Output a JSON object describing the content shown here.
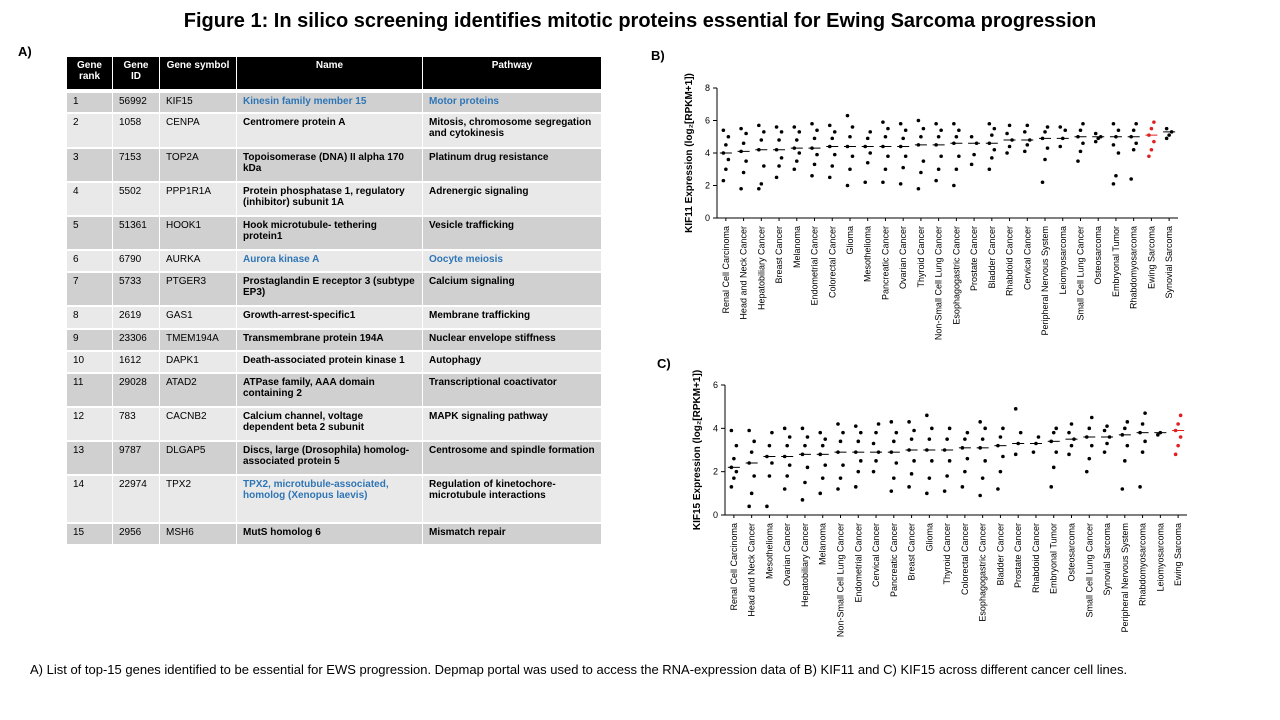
{
  "title": "Figure 1: In silico screening identifies mitotic proteins essential for Ewing Sarcoma progression",
  "panel_labels": [
    "A)",
    "B)",
    "C)"
  ],
  "caption": "A) List of top-15 genes identified to be essential for EWS progression. Depmap portal was used to access the RNA-expression data of B) KIF11 and C) KIF15 across different cancer cell lines.",
  "table": {
    "header": [
      "Gene rank",
      "Gene ID",
      "Gene symbol",
      "Name",
      "Pathway"
    ],
    "header_color": "#000000",
    "row_colors": [
      "#d0d0d0",
      "#e9e9e9"
    ],
    "rows": [
      {
        "rank": "1",
        "id": "56992",
        "symbol": "KIF15",
        "name": "Kinesin family member 15",
        "pathway": "Motor proteins",
        "name_color": "#2e75b6",
        "pathway_color": "#2e75b6"
      },
      {
        "rank": "2",
        "id": "1058",
        "symbol": "CENPA",
        "name": "Centromere protein A",
        "pathway": "Mitosis, chromosome segregation and cytokinesis"
      },
      {
        "rank": "3",
        "id": "7153",
        "symbol": "TOP2A",
        "name": "Topoisomerase (DNA) II alpha 170 kDa",
        "pathway": "Platinum drug resistance"
      },
      {
        "rank": "4",
        "id": "5502",
        "symbol": "PPP1R1A",
        "name": "Protein phosphatase 1, regulatory (inhibitor) subunit 1A",
        "pathway": "Adrenergic signaling"
      },
      {
        "rank": "5",
        "id": "51361",
        "symbol": "HOOK1",
        "name": "Hook microtubule- tethering protein1",
        "pathway": "Vesicle trafficking"
      },
      {
        "rank": "6",
        "id": "6790",
        "symbol": "AURKA",
        "name": "Aurora kinase A",
        "pathway": "Oocyte meiosis",
        "name_color": "#2e75b6",
        "pathway_color": "#2e75b6"
      },
      {
        "rank": "7",
        "id": "5733",
        "symbol": "PTGER3",
        "name": "Prostaglandin E receptor 3 (subtype EP3)",
        "pathway": "Calcium signaling"
      },
      {
        "rank": "8",
        "id": "2619",
        "symbol": "GAS1",
        "name": "Growth-arrest-specific1",
        "pathway": "Membrane trafficking"
      },
      {
        "rank": "9",
        "id": "23306",
        "symbol": "TMEM194A",
        "name": "Transmembrane protein 194A",
        "pathway": "Nuclear envelope stiffness"
      },
      {
        "rank": "10",
        "id": "1612",
        "symbol": "DAPK1",
        "name": "Death-associated protein kinase 1",
        "pathway": "Autophagy"
      },
      {
        "rank": "11",
        "id": "29028",
        "symbol": "ATAD2",
        "name": "ATPase family, AAA domain containing 2",
        "pathway": "Transcriptional coactivator"
      },
      {
        "rank": "12",
        "id": "783",
        "symbol": "CACNB2",
        "name": "Calcium channel, voltage dependent beta 2 subunit",
        "pathway": "MAPK signaling pathway"
      },
      {
        "rank": "13",
        "id": "9787",
        "symbol": "DLGAP5",
        "name": "Discs, large (Drosophila) homolog-associated protein 5",
        "pathway": "Centrosome and spindle formation"
      },
      {
        "rank": "14",
        "id": "22974",
        "symbol": "TPX2",
        "name": "TPX2, microtubule-associated, homolog (Xenopus laevis)",
        "pathway": "Regulation of kinetochore-microtubule interactions",
        "name_color": "#2e75b6"
      },
      {
        "rank": "15",
        "id": "2956",
        "symbol": "MSH6",
        "name": "MutS homolog 6",
        "pathway": "Mismatch repair"
      }
    ]
  },
  "chart_data": [
    {
      "type": "dot",
      "ylabel": "KIF11 Expression (log₂[RPKM+1])",
      "ylim": [
        0,
        8
      ],
      "yticks": [
        0,
        2,
        4,
        6,
        8
      ],
      "categories": [
        "Renal Cell Carcinoma",
        "Head and Neck Cancer",
        "Hepatobiliary Cancer",
        "Breast Cancer",
        "Melanoma",
        "Endometrial Cancer",
        "Colorectal Cancer",
        "Glioma",
        "Mesothelioma",
        "Pancreatic Cancer",
        "Ovarian Cancer",
        "Thyroid Cancer",
        "Non-Small Cell Lung Cancer",
        "Esophagogastric Cancer",
        "Prostate Cancer",
        "Bladder Cancer",
        "Rhabdoid Cancer",
        "Cervical Cancer",
        "Peripheral Nervous System",
        "Leiomyosarcoma",
        "Small Cell Lung Cancer",
        "Osteosarcoma",
        "Embryonal Tumor",
        "Rhabdomyosarcoma",
        "Ewing Sarcoma",
        "Synovial Sarcoma"
      ],
      "medians": [
        4.0,
        4.1,
        4.2,
        4.2,
        4.3,
        4.3,
        4.4,
        4.4,
        4.4,
        4.4,
        4.4,
        4.5,
        4.5,
        4.6,
        4.6,
        4.6,
        4.8,
        4.8,
        4.9,
        4.9,
        5.0,
        5.0,
        5.0,
        5.0,
        5.1,
        5.3
      ],
      "points": [
        [
          2.3,
          3.0,
          3.6,
          4.0,
          4.5,
          5.0,
          5.4
        ],
        [
          1.8,
          2.8,
          3.5,
          4.1,
          4.6,
          5.2,
          5.5
        ],
        [
          1.8,
          2.1,
          3.2,
          4.2,
          4.8,
          5.3,
          5.7
        ],
        [
          2.5,
          3.2,
          3.7,
          4.2,
          4.8,
          5.3,
          5.6
        ],
        [
          3.0,
          3.5,
          4.0,
          4.3,
          4.8,
          5.3,
          5.6
        ],
        [
          2.6,
          3.3,
          3.9,
          4.3,
          4.9,
          5.4,
          5.8
        ],
        [
          2.5,
          3.2,
          3.9,
          4.4,
          4.9,
          5.3,
          5.7
        ],
        [
          2.0,
          3.0,
          3.8,
          4.4,
          5.0,
          5.6,
          6.3
        ],
        [
          2.2,
          3.4,
          4.0,
          4.4,
          4.9,
          5.3
        ],
        [
          2.2,
          3.0,
          3.8,
          4.4,
          5.0,
          5.5,
          5.9
        ],
        [
          2.1,
          3.1,
          3.8,
          4.4,
          4.9,
          5.4,
          5.8
        ],
        [
          1.8,
          2.8,
          3.5,
          4.5,
          5.0,
          5.5,
          6.0
        ],
        [
          2.3,
          3.0,
          3.8,
          4.5,
          5.0,
          5.4,
          5.8
        ],
        [
          2.0,
          3.0,
          3.8,
          4.6,
          5.0,
          5.4,
          5.8
        ],
        [
          3.3,
          3.9,
          4.6,
          5.0
        ],
        [
          3.0,
          3.7,
          4.2,
          4.6,
          5.1,
          5.5,
          5.8
        ],
        [
          4.0,
          4.4,
          4.8,
          5.2,
          5.7
        ],
        [
          4.1,
          4.5,
          4.8,
          5.3,
          5.7
        ],
        [
          2.2,
          3.6,
          4.3,
          4.9,
          5.3,
          5.6
        ],
        [
          4.4,
          4.9,
          5.4,
          5.6
        ],
        [
          3.5,
          4.1,
          4.6,
          5.0,
          5.4,
          5.8
        ],
        [
          4.7,
          4.9,
          5.0,
          5.2
        ],
        [
          2.1,
          2.6,
          4.0,
          4.5,
          5.0,
          5.4,
          5.8
        ],
        [
          2.4,
          4.2,
          4.6,
          5.0,
          5.4,
          5.8
        ],
        [
          3.8,
          4.2,
          4.7,
          5.1,
          5.5,
          5.9
        ],
        [
          4.9,
          5.1,
          5.3,
          5.5
        ]
      ],
      "colors": [
        "#000000",
        "#000000",
        "#000000",
        "#000000",
        "#000000",
        "#000000",
        "#000000",
        "#000000",
        "#000000",
        "#000000",
        "#000000",
        "#000000",
        "#000000",
        "#000000",
        "#000000",
        "#000000",
        "#000000",
        "#000000",
        "#000000",
        "#000000",
        "#000000",
        "#000000",
        "#000000",
        "#000000",
        "#e02020",
        "#000000"
      ]
    },
    {
      "type": "dot",
      "ylabel": "KIF15 Expression (log₂[RPKM+1])",
      "ylim": [
        0,
        6
      ],
      "yticks": [
        0,
        2,
        4,
        6
      ],
      "categories": [
        "Renal Cell Carcinoma",
        "Head and Neck Cancer",
        "Mesothelioma",
        "Ovarian Cancer",
        "Hepatobiliary Cancer",
        "Melanoma",
        "Non-Small Cell Lung Cancer",
        "Endometrial Cancer",
        "Cervical Cancer",
        "Pancreatic Cancer",
        "Breast Cancer",
        "Glioma",
        "Thyroid Cancer",
        "Colorectal Cancer",
        "Esophagogastric Cancer",
        "Bladder Cancer",
        "Prostate Cancer",
        "Rhabdoid Cancer",
        "Embryonal Tumor",
        "Osteosarcoma",
        "Small Cell Lung Cancer",
        "Synovial Sarcoma",
        "Peripheral Nervous System",
        "Rhabdomyosarcoma",
        "Leiomyosarcoma",
        "Ewing Sarcoma"
      ],
      "medians": [
        2.2,
        2.4,
        2.7,
        2.7,
        2.8,
        2.8,
        2.9,
        2.9,
        2.9,
        2.9,
        3.0,
        3.0,
        3.0,
        3.1,
        3.1,
        3.2,
        3.3,
        3.3,
        3.4,
        3.5,
        3.6,
        3.6,
        3.7,
        3.8,
        3.8,
        3.9
      ],
      "points": [
        [
          1.3,
          1.7,
          2.0,
          2.2,
          2.6,
          3.2,
          3.9
        ],
        [
          0.4,
          1.0,
          1.8,
          2.4,
          2.9,
          3.4,
          3.9
        ],
        [
          0.4,
          1.8,
          2.4,
          2.7,
          3.2,
          3.8
        ],
        [
          1.2,
          1.8,
          2.3,
          2.7,
          3.2,
          3.6,
          4.0
        ],
        [
          0.7,
          1.5,
          2.2,
          2.8,
          3.2,
          3.6,
          4.0
        ],
        [
          1.0,
          1.7,
          2.3,
          2.8,
          3.2,
          3.5,
          3.8
        ],
        [
          1.2,
          1.7,
          2.3,
          2.9,
          3.4,
          3.8,
          4.2
        ],
        [
          1.3,
          2.0,
          2.5,
          2.9,
          3.4,
          3.8,
          4.1
        ],
        [
          2.0,
          2.5,
          2.9,
          3.3,
          3.8,
          4.2
        ],
        [
          1.1,
          1.7,
          2.4,
          2.9,
          3.4,
          3.8,
          4.3
        ],
        [
          1.3,
          1.9,
          2.5,
          3.0,
          3.5,
          3.9,
          4.3
        ],
        [
          1.0,
          1.7,
          2.5,
          3.0,
          3.5,
          4.0,
          4.6
        ],
        [
          1.1,
          1.8,
          2.5,
          3.0,
          3.5,
          4.0
        ],
        [
          1.3,
          2.0,
          2.6,
          3.1,
          3.5,
          3.8
        ],
        [
          0.9,
          1.7,
          2.5,
          3.1,
          3.5,
          4.0,
          4.3
        ],
        [
          1.2,
          2.0,
          2.7,
          3.2,
          3.6,
          4.0
        ],
        [
          2.8,
          3.3,
          3.8,
          4.9
        ],
        [
          2.9,
          3.3,
          3.6
        ],
        [
          1.3,
          2.2,
          2.9,
          3.4,
          3.8,
          4.0
        ],
        [
          2.8,
          3.2,
          3.5,
          3.8,
          4.2
        ],
        [
          2.0,
          2.6,
          3.2,
          3.6,
          4.0,
          4.5
        ],
        [
          2.9,
          3.3,
          3.6,
          3.9,
          4.1
        ],
        [
          1.2,
          2.5,
          3.2,
          3.7,
          4.0,
          4.3
        ],
        [
          1.3,
          2.9,
          3.4,
          3.8,
          4.2,
          4.7
        ],
        [
          3.7,
          3.8
        ],
        [
          2.8,
          3.2,
          3.6,
          3.9,
          4.2,
          4.6
        ]
      ],
      "colors": [
        "#000000",
        "#000000",
        "#000000",
        "#000000",
        "#000000",
        "#000000",
        "#000000",
        "#000000",
        "#000000",
        "#000000",
        "#000000",
        "#000000",
        "#000000",
        "#000000",
        "#000000",
        "#000000",
        "#000000",
        "#000000",
        "#000000",
        "#000000",
        "#000000",
        "#000000",
        "#000000",
        "#000000",
        "#000000",
        "#e02020"
      ]
    }
  ]
}
